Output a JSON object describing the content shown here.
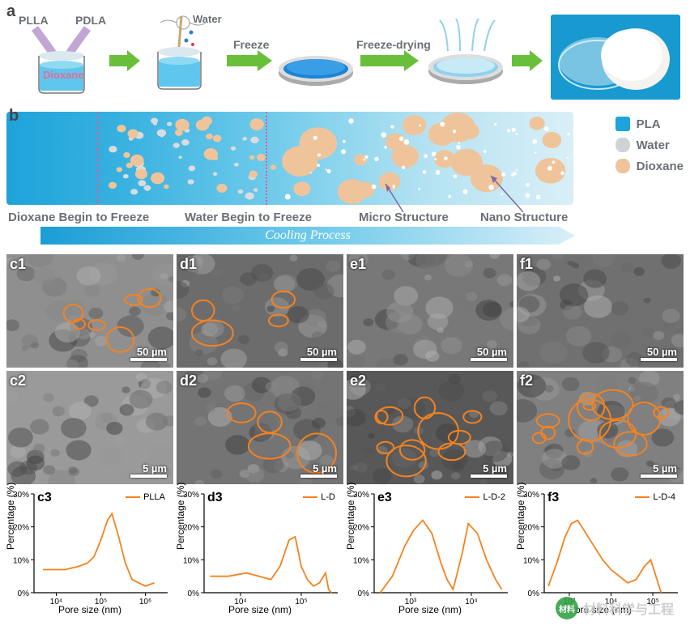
{
  "panelA": {
    "label": "a",
    "annotations": {
      "plla": "PLLA",
      "pdla": "PDLA",
      "dioxane": "Dioxane",
      "water": "Water",
      "freeze": "Freeze",
      "freezeDrying": "Freeze-drying"
    },
    "colors": {
      "beaker": "#5fc7ed",
      "dish": "#1b84d6",
      "dishLight": "#8fd2ef",
      "arrow": "#6abf3a",
      "purple": "#a97fc2",
      "photoBg": "#1899cf",
      "disc": "#f5f3ef"
    }
  },
  "panelB": {
    "label": "b",
    "legend": [
      {
        "color": "#1ea3da",
        "shape": "square",
        "label": "PLA"
      },
      {
        "color": "#cfd3d6",
        "shape": "ellipse",
        "label": "Water"
      },
      {
        "color": "#f0c49a",
        "shape": "ellipse",
        "label": "Dioxane"
      }
    ],
    "captions": {
      "c1": "Dioxane Begin to Freeze",
      "c2": "Water Begin to Freeze",
      "c3": "Micro Structure",
      "c4": "Nano Structure"
    },
    "coolingText": "Cooling Process",
    "dashPositions": [
      112,
      320
    ],
    "waterDropColor": "#d8dcde",
    "dioxaneDropColor": "#f0c49a"
  },
  "sem": {
    "row1": [
      {
        "label": "c1",
        "scale": "50 µm",
        "bg": "#8f8f8f",
        "outlineCount": 6
      },
      {
        "label": "d1",
        "scale": "50 µm",
        "bg": "#6c6c6c",
        "outlineCount": 4
      },
      {
        "label": "e1",
        "scale": "50 µm",
        "bg": "#787878",
        "outlineCount": 0
      },
      {
        "label": "f1",
        "scale": "50 µm",
        "bg": "#707070",
        "outlineCount": 0
      }
    ],
    "row2": [
      {
        "label": "c2",
        "scale": "5 µm",
        "bg": "#9a9a9a",
        "outlineCount": 0
      },
      {
        "label": "d2",
        "scale": "5 µm",
        "bg": "#747474",
        "outlineCount": 4
      },
      {
        "label": "e2",
        "scale": "5 µm",
        "bg": "#585858",
        "outlineCount": 10
      },
      {
        "label": "f2",
        "scale": "5 µm",
        "bg": "#808080",
        "outlineCount": 12
      }
    ],
    "outlineColor": "#f58220"
  },
  "charts": [
    {
      "label": "c3",
      "legend": "PLLA",
      "ylabel": "Percentage (%)",
      "xlabel": "Pore size (nm)",
      "ylim": [
        0,
        30
      ],
      "yticks": [
        0,
        10,
        20,
        30
      ],
      "xticks": [
        "10⁴",
        "10⁵",
        "10⁶"
      ],
      "xLogRange": [
        3.5,
        6.5
      ],
      "data": [
        [
          3.7,
          7
        ],
        [
          3.9,
          7
        ],
        [
          4.2,
          7
        ],
        [
          4.5,
          8
        ],
        [
          4.7,
          9
        ],
        [
          4.85,
          11
        ],
        [
          5.0,
          16
        ],
        [
          5.15,
          22
        ],
        [
          5.25,
          24
        ],
        [
          5.4,
          17
        ],
        [
          5.55,
          9
        ],
        [
          5.7,
          4
        ],
        [
          5.85,
          3
        ],
        [
          6.0,
          2
        ],
        [
          6.2,
          3
        ]
      ],
      "color": "#f58220"
    },
    {
      "label": "d3",
      "legend": "L-D",
      "ylabel": "Percentage (%)",
      "xlabel": "Pore size (nm)",
      "ylim": [
        0,
        30
      ],
      "yticks": [
        0,
        10,
        20,
        30
      ],
      "xticks": [
        "10⁴",
        "10⁵"
      ],
      "xLogRange": [
        3.4,
        5.6
      ],
      "data": [
        [
          3.5,
          5
        ],
        [
          3.8,
          5
        ],
        [
          4.1,
          6
        ],
        [
          4.3,
          5
        ],
        [
          4.5,
          4
        ],
        [
          4.65,
          8
        ],
        [
          4.8,
          16
        ],
        [
          4.9,
          17
        ],
        [
          5.0,
          8
        ],
        [
          5.1,
          4
        ],
        [
          5.2,
          2
        ],
        [
          5.3,
          3
        ],
        [
          5.4,
          6
        ],
        [
          5.45,
          1
        ],
        [
          5.5,
          0
        ]
      ],
      "color": "#f58220"
    },
    {
      "label": "e3",
      "legend": "L-D-2",
      "ylabel": "Percentage (%)",
      "xlabel": "Pore size (nm)",
      "ylim": [
        0,
        30
      ],
      "yticks": [
        0,
        10,
        20,
        30
      ],
      "xticks": [
        "10³",
        "10⁴"
      ],
      "xLogRange": [
        2.4,
        4.6
      ],
      "data": [
        [
          2.5,
          0
        ],
        [
          2.7,
          5
        ],
        [
          2.9,
          14
        ],
        [
          3.05,
          19
        ],
        [
          3.2,
          22
        ],
        [
          3.35,
          18
        ],
        [
          3.5,
          9
        ],
        [
          3.6,
          4
        ],
        [
          3.7,
          1
        ],
        [
          3.85,
          12
        ],
        [
          3.95,
          21
        ],
        [
          4.1,
          18
        ],
        [
          4.25,
          10
        ],
        [
          4.4,
          4
        ],
        [
          4.5,
          1
        ]
      ],
      "color": "#f58220"
    },
    {
      "label": "f3",
      "legend": "L-D-4",
      "ylabel": "Percentage (%)",
      "xlabel": "Pore size (nm)",
      "ylim": [
        0,
        30
      ],
      "yticks": [
        0,
        10,
        20,
        30
      ],
      "xticks": [
        "10³",
        "10⁴",
        "10⁵"
      ],
      "xLogRange": [
        2.4,
        5.6
      ],
      "data": [
        [
          2.5,
          2
        ],
        [
          2.7,
          9
        ],
        [
          2.9,
          17
        ],
        [
          3.05,
          21
        ],
        [
          3.2,
          22
        ],
        [
          3.4,
          18
        ],
        [
          3.6,
          14
        ],
        [
          3.8,
          10
        ],
        [
          4.0,
          7
        ],
        [
          4.2,
          5
        ],
        [
          4.4,
          3
        ],
        [
          4.6,
          4
        ],
        [
          4.8,
          8
        ],
        [
          4.95,
          10
        ],
        [
          5.1,
          4
        ],
        [
          5.2,
          0
        ]
      ],
      "color": "#f58220"
    }
  ],
  "watermark": {
    "icon": "材料",
    "text": "材料科学与工程"
  }
}
